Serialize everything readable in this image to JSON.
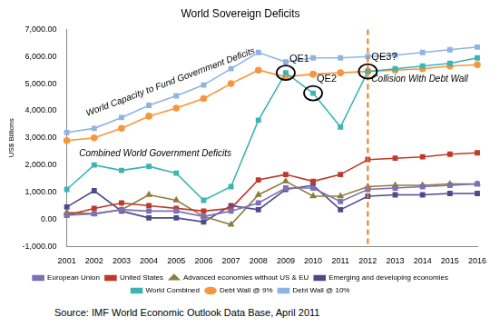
{
  "chart_data": {
    "type": "line",
    "title": "World Sovereign Deficits",
    "ylabel": "US$ Billions",
    "source": "Source: IMF World Economic Outlook Data Base, April 2011",
    "categories": [
      "2001",
      "2002",
      "2003",
      "2004",
      "2005",
      "2006",
      "2007",
      "2008",
      "2009",
      "2010",
      "2011",
      "2012",
      "2013",
      "2014",
      "2015",
      "2016"
    ],
    "series": [
      {
        "name": "European Union",
        "color": "#7f6fb8",
        "marker": "square",
        "values": [
          150,
          200,
          350,
          300,
          300,
          100,
          300,
          600,
          1150,
          1150,
          650,
          1100,
          1150,
          1200,
          1250,
          1300
        ]
      },
      {
        "name": "United States",
        "color": "#c0392b",
        "marker": "square",
        "values": [
          150,
          400,
          600,
          500,
          400,
          300,
          400,
          1450,
          1650,
          1400,
          1650,
          2200,
          2250,
          2300,
          2400,
          2450
        ]
      },
      {
        "name": "Advanced economies without US & EU",
        "color": "#8c7d3c",
        "marker": "triangle",
        "values": [
          250,
          200,
          350,
          900,
          700,
          100,
          -200,
          900,
          1400,
          850,
          850,
          1200,
          1250,
          1250,
          1300,
          1300
        ]
      },
      {
        "name": "Emerging and developing economies",
        "color": "#4f4a8c",
        "marker": "square",
        "values": [
          450,
          1050,
          300,
          50,
          50,
          -100,
          500,
          350,
          1100,
          1250,
          350,
          850,
          900,
          900,
          950,
          950
        ]
      },
      {
        "name": "World Combined",
        "color": "#3cb4b4",
        "marker": "square",
        "values": [
          1100,
          2000,
          1800,
          1950,
          1700,
          700,
          1200,
          3650,
          5400,
          4650,
          3400,
          5450,
          5550,
          5650,
          5750,
          5950
        ]
      },
      {
        "name": "Debt Wall @ 9%",
        "color": "#f7963c",
        "marker": "circle",
        "values": [
          2900,
          3000,
          3350,
          3800,
          4100,
          4450,
          5000,
          5500,
          5250,
          5350,
          5400,
          5450,
          5500,
          5550,
          5650,
          5700
        ]
      },
      {
        "name": "Debt Wall @ 10%",
        "color": "#8eb4e3",
        "marker": "square",
        "values": [
          3200,
          3350,
          3750,
          4200,
          4550,
          4950,
          5550,
          6150,
          5800,
          5950,
          5950,
          6000,
          6050,
          6150,
          6250,
          6350
        ]
      }
    ],
    "ylim": [
      -1000,
      7000
    ],
    "yticks": [
      {
        "value": -1000,
        "label": "-1,000.00"
      },
      {
        "value": 0,
        "label": "0.00"
      },
      {
        "value": 1000,
        "label": "1,000.00"
      },
      {
        "value": 2000,
        "label": "2,000.00"
      },
      {
        "value": 3000,
        "label": "3,000.00"
      },
      {
        "value": 4000,
        "label": "4,000.00"
      },
      {
        "value": 5000,
        "label": "5,000.00"
      },
      {
        "value": 6000,
        "label": "6,000.00"
      },
      {
        "value": 7000,
        "label": "7,000.00"
      }
    ],
    "grid": false,
    "legend": "bottom",
    "annotations": [
      {
        "text": "World Capacity to Fund Government Deficits"
      },
      {
        "text": "Combined World Government Deficits"
      },
      {
        "text": "QE1",
        "x": "2009",
        "series": "World Combined",
        "marker": "circle"
      },
      {
        "text": "QE2",
        "x": "2010",
        "series": "World Combined",
        "marker": "circle"
      },
      {
        "text": "QE3?",
        "x": "2012",
        "series": "World Combined",
        "marker": "circle",
        "line_style": "dashed"
      },
      {
        "text": "Collision With Debt Wall",
        "x": "2012",
        "series": "World Combined"
      }
    ]
  }
}
